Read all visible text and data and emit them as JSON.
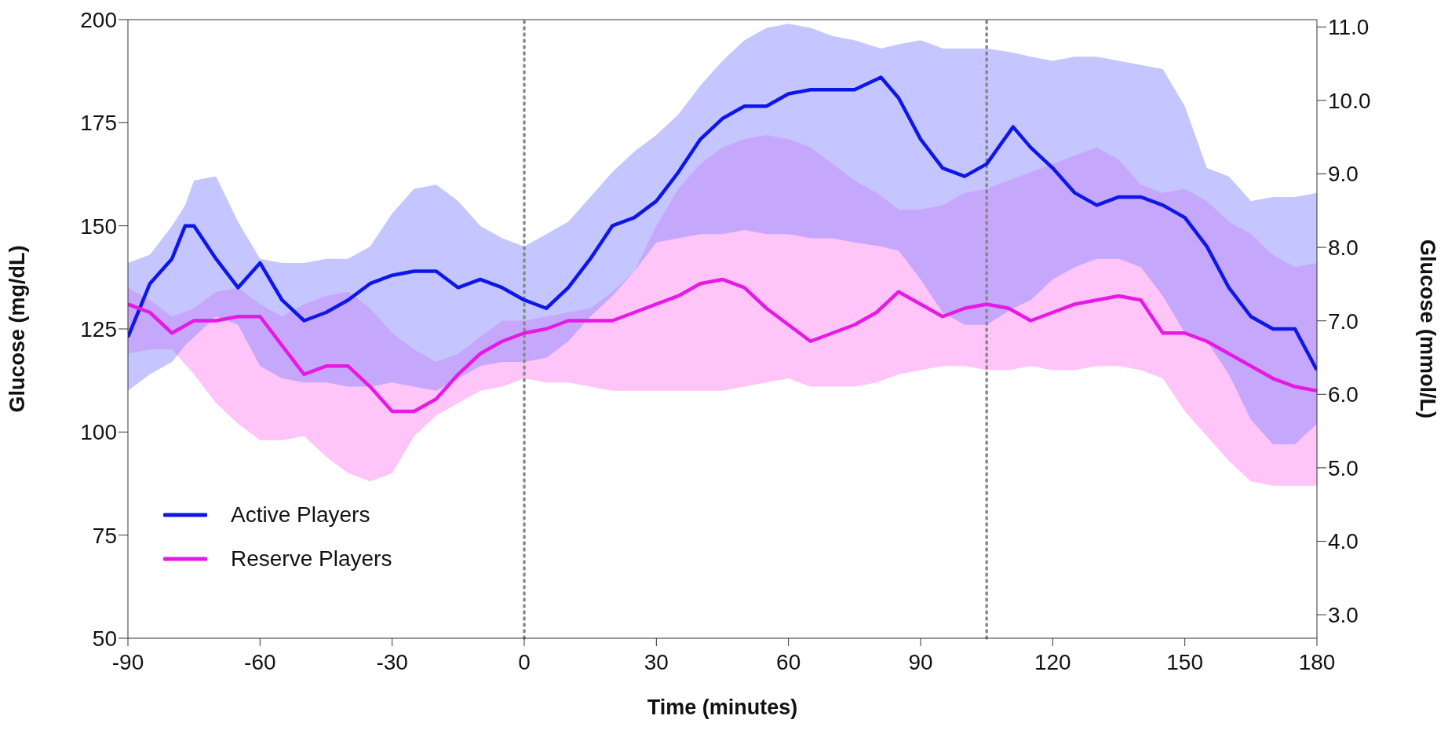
{
  "chart_data": {
    "type": "line",
    "xlabel": "Time (minutes)",
    "ylabel": "Glucose (mg/dL)",
    "y2label": "Glucose (mmol/L)",
    "xlim": [
      -90,
      180
    ],
    "xticks": [
      -90,
      -60,
      -30,
      0,
      30,
      60,
      90,
      120,
      150,
      180
    ],
    "ylim": [
      50,
      200
    ],
    "yticks": [
      50,
      75,
      100,
      125,
      150,
      175,
      200
    ],
    "y2lim": [
      2.68,
      11.1
    ],
    "y2ticks": [
      {
        "value": 3,
        "label": "3.0"
      },
      {
        "value": 4,
        "label": "4.0"
      },
      {
        "value": 5,
        "label": "5.0"
      },
      {
        "value": 6,
        "label": "6.0"
      },
      {
        "value": 7,
        "label": "7.0"
      },
      {
        "value": 8,
        "label": "8.0"
      },
      {
        "value": 9,
        "label": "9.0"
      },
      {
        "value": 10,
        "label": "10.0"
      },
      {
        "value": 11,
        "label": "11.0"
      }
    ],
    "grid": false,
    "legend": "bottom left",
    "marker": "none",
    "line_style": "solid",
    "ref_lines": [
      {
        "axis": "x",
        "value": 0,
        "color": "#888888",
        "line_style": "dotted"
      },
      {
        "axis": "x",
        "value": 105,
        "color": "#888888",
        "line_style": "dotted"
      }
    ],
    "series": [
      {
        "name": "Active Players",
        "color": "#0d17e8",
        "x": [
          -90,
          -85,
          -80,
          -77,
          -75,
          -70,
          -65,
          -60,
          -55,
          -50,
          -45,
          -40,
          -35,
          -30,
          -25,
          -20,
          -15,
          -10,
          -5,
          0,
          5,
          10,
          15,
          20,
          25,
          30,
          35,
          40,
          45,
          50,
          55,
          60,
          65,
          70,
          75,
          81,
          85,
          90,
          95,
          100,
          105,
          111,
          115,
          120,
          125,
          130,
          135,
          140,
          145,
          150,
          155,
          160,
          165,
          170,
          175,
          180
        ],
        "values": [
          123,
          136,
          142,
          150,
          150,
          142,
          135,
          141,
          132,
          127,
          129,
          132,
          136,
          138,
          139,
          139,
          135,
          137,
          135,
          132,
          130,
          135,
          142,
          150,
          152,
          156,
          163,
          171,
          176,
          179,
          179,
          182,
          183,
          183,
          183,
          186,
          181,
          171,
          164,
          162,
          165,
          174,
          169,
          164,
          158,
          155,
          157,
          157,
          155,
          152,
          145,
          135,
          128,
          125,
          125,
          115
        ],
        "lower": [
          110,
          114,
          117,
          121,
          123,
          128,
          126,
          116,
          113,
          112,
          112,
          111,
          111,
          112,
          111,
          110,
          113,
          116,
          117,
          117,
          118,
          122,
          128,
          133,
          139,
          146,
          147,
          148,
          148,
          149,
          148,
          148,
          147,
          147,
          146,
          145,
          144,
          137,
          129,
          126,
          126,
          130,
          132,
          137,
          140,
          142,
          142,
          140,
          133,
          124,
          122,
          114,
          103,
          97,
          97,
          102
        ],
        "upper": [
          141,
          143,
          150,
          155,
          161,
          162,
          151,
          142,
          141,
          141,
          142,
          142,
          145,
          153,
          159,
          160,
          156,
          150,
          147,
          145,
          148,
          151,
          157,
          163,
          168,
          172,
          177,
          184,
          190,
          195,
          198,
          199,
          198,
          196,
          195,
          193,
          194,
          195,
          193,
          193,
          193,
          192,
          191,
          190,
          191,
          191,
          190,
          189,
          188,
          179,
          164,
          162,
          156,
          157,
          157,
          158
        ]
      },
      {
        "name": "Reserve Players",
        "color": "#e619e6",
        "x": [
          -90,
          -85,
          -80,
          -75,
          -70,
          -65,
          -60,
          -55,
          -50,
          -45,
          -40,
          -35,
          -30,
          -25,
          -20,
          -15,
          -10,
          -5,
          0,
          5,
          10,
          15,
          20,
          25,
          30,
          35,
          40,
          45,
          50,
          55,
          60,
          65,
          70,
          75,
          80,
          85,
          90,
          95,
          100,
          105,
          110,
          115,
          120,
          125,
          130,
          135,
          140,
          145,
          150,
          155,
          160,
          165,
          170,
          175,
          180
        ],
        "values": [
          131,
          129,
          124,
          127,
          127,
          128,
          128,
          121,
          114,
          116,
          116,
          111,
          105,
          105,
          108,
          114,
          119,
          122,
          124,
          125,
          127,
          127,
          127,
          129,
          131,
          133,
          136,
          137,
          135,
          130,
          126,
          122,
          124,
          126,
          129,
          134,
          131,
          128,
          130,
          131,
          130,
          127,
          129,
          131,
          132,
          133,
          132,
          124,
          124,
          122,
          119,
          116,
          113,
          111,
          110
        ],
        "lower": [
          119,
          120,
          120,
          114,
          107,
          102,
          98,
          98,
          99,
          94,
          90,
          88,
          90,
          99,
          104,
          107,
          110,
          111,
          113,
          112,
          112,
          111,
          110,
          110,
          110,
          110,
          110,
          110,
          111,
          112,
          113,
          111,
          111,
          111,
          112,
          114,
          115,
          116,
          116,
          115,
          115,
          116,
          115,
          115,
          116,
          116,
          115,
          113,
          105,
          99,
          93,
          88,
          87,
          87,
          87
        ],
        "upper": [
          135,
          132,
          128,
          130,
          134,
          135,
          131,
          128,
          131,
          133,
          134,
          130,
          124,
          120,
          117,
          119,
          123,
          127,
          127,
          128,
          129,
          130,
          134,
          139,
          150,
          159,
          165,
          169,
          171,
          172,
          171,
          169,
          165,
          161,
          158,
          154,
          154,
          155,
          158,
          159,
          161,
          163,
          165,
          167,
          169,
          166,
          160,
          158,
          159,
          156,
          151,
          148,
          143,
          140,
          141
        ]
      }
    ]
  }
}
